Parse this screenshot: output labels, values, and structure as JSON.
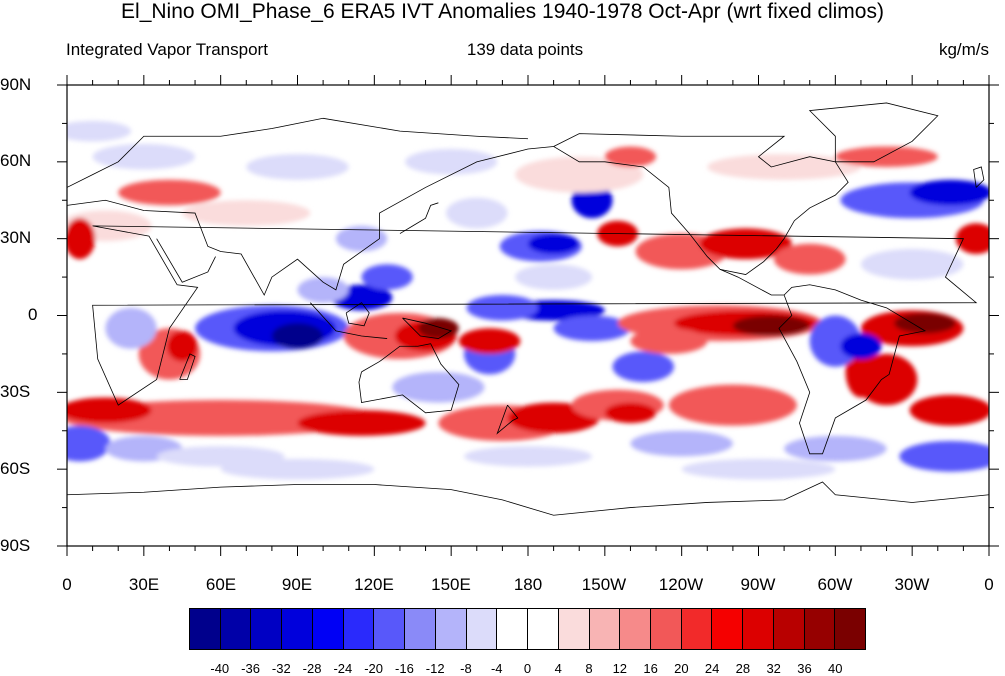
{
  "header": {
    "title": "El_Nino OMI_Phase_6 ERA5 IVT Anomalies 1940-1978 Oct-Apr (wrt fixed climos)",
    "left_string": "Integrated Vapor Transport",
    "center_string": "139 data points",
    "right_string": "kg/m/s"
  },
  "map": {
    "projection": "cylindrical-equidistant",
    "center_longitude": 180,
    "lat_ticks": [
      "90N",
      "60N",
      "30N",
      "0",
      "30S",
      "60S",
      "90S"
    ],
    "lon_ticks": [
      "0",
      "30E",
      "60E",
      "90E",
      "120E",
      "150E",
      "180",
      "150W",
      "120W",
      "90W",
      "60W",
      "30W",
      "0"
    ]
  },
  "colorbar": {
    "labels": [
      "-40",
      "-36",
      "-32",
      "-28",
      "-24",
      "-20",
      "-16",
      "-12",
      "-8",
      "-4",
      "0",
      "4",
      "8",
      "12",
      "16",
      "20",
      "24",
      "28",
      "32",
      "36",
      "40"
    ],
    "colors": [
      "#00008c",
      "#0000a8",
      "#0000c4",
      "#0000dc",
      "#0000f5",
      "#2a2afc",
      "#5858fa",
      "#8a8af8",
      "#b4b4fa",
      "#dcdcfa",
      "#ffffff",
      "#ffffff",
      "#fadcdc",
      "#f8b4b4",
      "#f68a8a",
      "#f25858",
      "#f22a2a",
      "#f50000",
      "#dc0000",
      "#b80000",
      "#960000",
      "#7a0000"
    ]
  },
  "chart_data": {
    "type": "heatmap",
    "title": "El_Nino OMI_Phase_6 ERA5 IVT Anomalies 1940-1978 Oct-Apr (wrt fixed climos)",
    "variable": "Integrated Vapor Transport",
    "units": "kg/m/s",
    "n": "139 data points",
    "xlabel": "",
    "ylabel": "",
    "xlim": [
      0,
      360
    ],
    "ylim": [
      -90,
      90
    ],
    "levels": [
      -40,
      -36,
      -32,
      -28,
      -24,
      -20,
      -16,
      -12,
      -8,
      -4,
      0,
      4,
      8,
      12,
      16,
      20,
      24,
      28,
      32,
      36,
      40
    ],
    "anomaly_features": [
      {
        "sign": "positive",
        "lon_range": [
          175,
          290
        ],
        "lat_range": [
          -15,
          5
        ],
        "peak": 40
      },
      {
        "sign": "positive",
        "lon_range": [
          110,
          165
        ],
        "lat_range": [
          -25,
          0
        ],
        "peak": 40
      },
      {
        "sign": "negative",
        "lon_range": [
          50,
          110
        ],
        "lat_range": [
          -15,
          5
        ],
        "peak": -40
      },
      {
        "sign": "negative",
        "lon_range": [
          150,
          230
        ],
        "lat_range": [
          -30,
          10
        ],
        "peak": -40
      },
      {
        "sign": "positive",
        "lon_range": [
          0,
          150
        ],
        "lat_range": [
          -50,
          -30
        ],
        "peak": 24
      },
      {
        "sign": "positive",
        "lon_range": [
          290,
          350
        ],
        "lat_range": [
          -15,
          5
        ],
        "peak": 40
      },
      {
        "sign": "negative",
        "lon_range": [
          310,
          360
        ],
        "lat_range": [
          35,
          55
        ],
        "peak": -32
      },
      {
        "sign": "negative",
        "lon_range": [
          175,
          225
        ],
        "lat_range": [
          20,
          50
        ],
        "peak": -32
      }
    ]
  }
}
